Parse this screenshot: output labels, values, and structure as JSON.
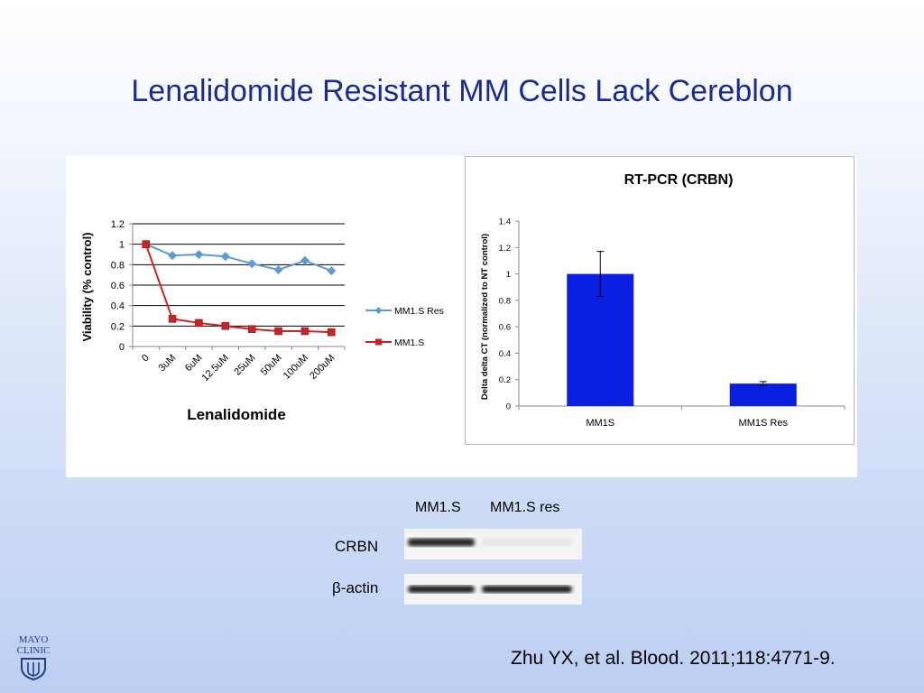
{
  "slide": {
    "title": "Lenalidomide Resistant MM Cells Lack Cereblon",
    "citation": "Zhu YX, et al. Blood. 2011;118:4771-9.",
    "logo_line1": "MAYO",
    "logo_line2": "CLINIC",
    "logo_icon": "shield-icon"
  },
  "colors": {
    "title": "#1a2a8e",
    "res_series": "#5b9bd5",
    "s_series": "#cc2222",
    "bar": "#0a1fe0"
  },
  "chart_data": [
    {
      "type": "line",
      "categories": [
        "0",
        "3uM",
        "6uM",
        "12.5uM",
        "25uM",
        "50uM",
        "100uM",
        "200uM"
      ],
      "series": [
        {
          "name": "MM1.S Res",
          "values": [
            1.0,
            0.89,
            0.9,
            0.88,
            0.81,
            0.75,
            0.84,
            0.74
          ],
          "marker": "diamond",
          "color": "#5b9bd5"
        },
        {
          "name": "MM1.S",
          "values": [
            1.0,
            0.27,
            0.23,
            0.2,
            0.17,
            0.15,
            0.15,
            0.14
          ],
          "marker": "square",
          "color": "#cc2222"
        }
      ],
      "xlabel": "Lenalidomide",
      "ylabel": "Viability (% control)",
      "ylim": [
        0,
        1.2
      ],
      "yticks": [
        "0",
        "0.2",
        "0.4",
        "0.6",
        "0.8",
        "1",
        "1.2"
      ],
      "grid": true,
      "legend": "right"
    },
    {
      "type": "bar",
      "title": "RT-PCR  (CRBN)",
      "categories": [
        "MM1S",
        "MM1S Res"
      ],
      "values": [
        1.0,
        0.17
      ],
      "errors": [
        0.17,
        0.015
      ],
      "ylabel": "Delta delta CT (normalized to NT control)",
      "ylim": [
        0,
        1.4
      ],
      "yticks": [
        "0",
        "0.2",
        "0.4",
        "0.6",
        "0.8",
        "1",
        "1.2",
        "1.4"
      ],
      "grid": false
    }
  ],
  "blot": {
    "lanes": [
      "MM1.S",
      "MM1.S res"
    ],
    "rows": [
      {
        "label": "CRBN",
        "bands": [
          0.9,
          0.04
        ]
      },
      {
        "label": "β-actin",
        "bands": [
          0.95,
          0.95
        ]
      }
    ]
  }
}
